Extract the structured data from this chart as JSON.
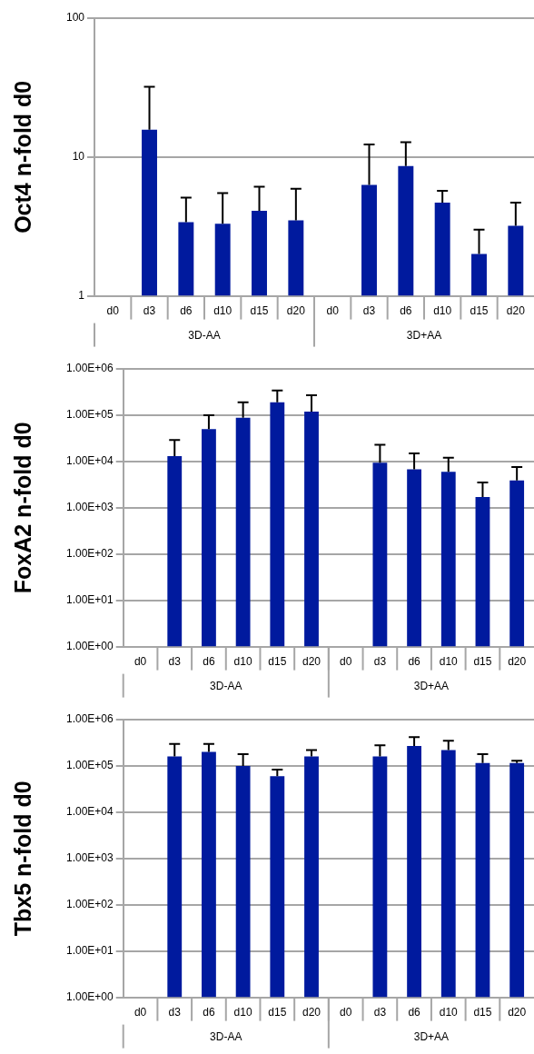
{
  "chart_data": [
    {
      "type": "bar",
      "ylabel": "Oct4 n-fold d0",
      "categories": [
        "d0",
        "d3",
        "d6",
        "d10",
        "d15",
        "d20",
        "d0",
        "d3",
        "d6",
        "d10",
        "d15",
        "d20"
      ],
      "annotations": [
        "3D-AA",
        "3D+AA"
      ],
      "series": [
        {
          "color": "#001a9e",
          "values": [
            1,
            15.7,
            3.4,
            3.3,
            4.1,
            3.5,
            1,
            6.3,
            8.6,
            4.7,
            2.0,
            3.2
          ],
          "errors": [
            null,
            [
              15.7,
              32
            ],
            [
              3.4,
              5.1
            ],
            [
              3.3,
              5.5
            ],
            [
              4.1,
              6.1
            ],
            [
              3.5,
              5.9
            ],
            null,
            [
              6.3,
              12.3
            ],
            [
              8.6,
              12.8
            ],
            [
              4.7,
              5.7
            ],
            [
              2.0,
              3.0
            ],
            [
              3.2,
              4.7
            ]
          ]
        }
      ],
      "log": "y",
      "ylim": [
        1,
        100
      ],
      "yticks": [
        1,
        10,
        100
      ],
      "grid": "y",
      "legend": false
    },
    {
      "type": "bar",
      "ylabel": "FoxA2 n-fold d0",
      "categories": [
        "d0",
        "d3",
        "d6",
        "d10",
        "d15",
        "d20",
        "d0",
        "d3",
        "d6",
        "d10",
        "d15",
        "d20"
      ],
      "annotations": [
        "3D-AA",
        "3D+AA"
      ],
      "series": [
        {
          "color": "#001a9e",
          "values": [
            1,
            13000,
            50000,
            88000,
            190000,
            120000,
            1,
            9400,
            6800,
            6000,
            1700,
            3900
          ],
          "errors": [
            null,
            [
              13000,
              29000
            ],
            [
              50000,
              100000
            ],
            [
              88000,
              190000
            ],
            [
              190000,
              340000
            ],
            [
              120000,
              270000
            ],
            null,
            [
              9400,
              23000
            ],
            [
              6800,
              15000
            ],
            [
              6000,
              12000
            ],
            [
              1700,
              3500
            ],
            [
              3900,
              7600
            ]
          ]
        }
      ],
      "log": "y",
      "ylim": [
        1,
        1000000
      ],
      "yticks": [
        {
          "value": 1,
          "label": "1.00E+00"
        },
        {
          "value": 10,
          "label": "1.00E+01"
        },
        {
          "value": 100,
          "label": "1.00E+02"
        },
        {
          "value": 1000,
          "label": "1.00E+03"
        },
        {
          "value": 10000,
          "label": "1.00E+04"
        },
        {
          "value": 100000,
          "label": "1.00E+05"
        },
        {
          "value": 1000000,
          "label": "1.00E+06"
        }
      ],
      "grid": "y",
      "legend": false
    },
    {
      "type": "bar",
      "ylabel": "Tbx5 n-fold d0",
      "categories": [
        "d0",
        "d3",
        "d6",
        "d10",
        "d15",
        "d20",
        "d0",
        "d3",
        "d6",
        "d10",
        "d15",
        "d20"
      ],
      "annotations": [
        "3D-AA",
        "3D+AA"
      ],
      "series": [
        {
          "color": "#001a9e",
          "values": [
            1,
            160000,
            200000,
            100000,
            60000,
            160000,
            1,
            160000,
            270000,
            220000,
            115000,
            115000
          ],
          "errors": [
            null,
            [
              160000,
              300000
            ],
            [
              200000,
              300000
            ],
            [
              100000,
              180000
            ],
            [
              60000,
              83000
            ],
            [
              160000,
              220000
            ],
            null,
            [
              160000,
              280000
            ],
            [
              270000,
              420000
            ],
            [
              220000,
              350000
            ],
            [
              115000,
              180000
            ],
            [
              115000,
              130000
            ]
          ]
        }
      ],
      "log": "y",
      "ylim": [
        1,
        1000000
      ],
      "yticks": [
        {
          "value": 1,
          "label": "1.00E+00"
        },
        {
          "value": 10,
          "label": "1.00E+01"
        },
        {
          "value": 100,
          "label": "1.00E+02"
        },
        {
          "value": 1000,
          "label": "1.00E+03"
        },
        {
          "value": 10000,
          "label": "1.00E+04"
        },
        {
          "value": 100000,
          "label": "1.00E+05"
        },
        {
          "value": 1000000,
          "label": "1.00E+06"
        }
      ],
      "grid": "y",
      "legend": false
    }
  ]
}
